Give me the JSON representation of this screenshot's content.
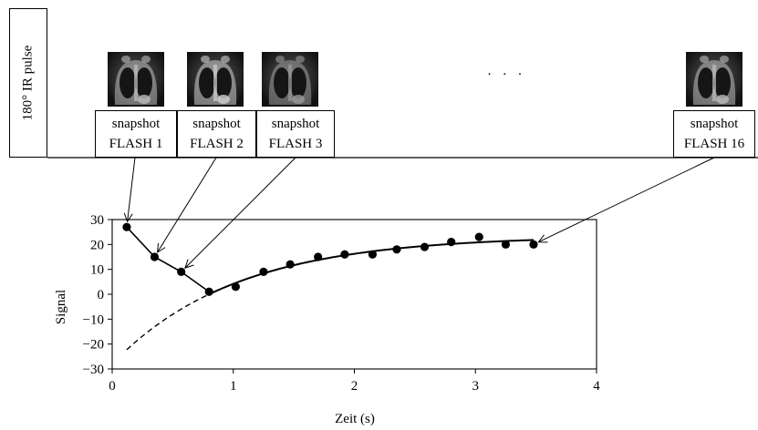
{
  "pulse_label": "180° IR pulse",
  "snapshots": [
    {
      "line1": "snapshot",
      "line2": "FLASH 1"
    },
    {
      "line1": "snapshot",
      "line2": "FLASH 2"
    },
    {
      "line1": "snapshot",
      "line2": "FLASH 3"
    },
    {
      "line1": "snapshot",
      "line2": "FLASH 16"
    }
  ],
  "ellipsis": "· · ·",
  "chart_data": {
    "type": "scatter",
    "xlabel": "Zeit (s)",
    "ylabel": "Signal",
    "xlim": [
      0,
      4
    ],
    "ylim": [
      -30,
      30
    ],
    "xticks": [
      "0",
      "1",
      "2",
      "3",
      "4"
    ],
    "yticks": [
      "30",
      "20",
      "10",
      "0",
      "−10",
      "−20",
      "−30"
    ],
    "points": {
      "x": [
        0.12,
        0.35,
        0.57,
        0.8,
        1.02,
        1.25,
        1.47,
        1.7,
        1.92,
        2.15,
        2.35,
        2.58,
        2.8,
        3.03,
        3.25,
        3.48
      ],
      "y": [
        27,
        15,
        9,
        1,
        3,
        9,
        12,
        15,
        16,
        16,
        18,
        19,
        21,
        23,
        20,
        20
      ]
    },
    "fit_curve": {
      "style": "solid above zero, dashed below zero"
    },
    "pointer_targets": [
      0,
      1,
      2,
      15
    ]
  }
}
